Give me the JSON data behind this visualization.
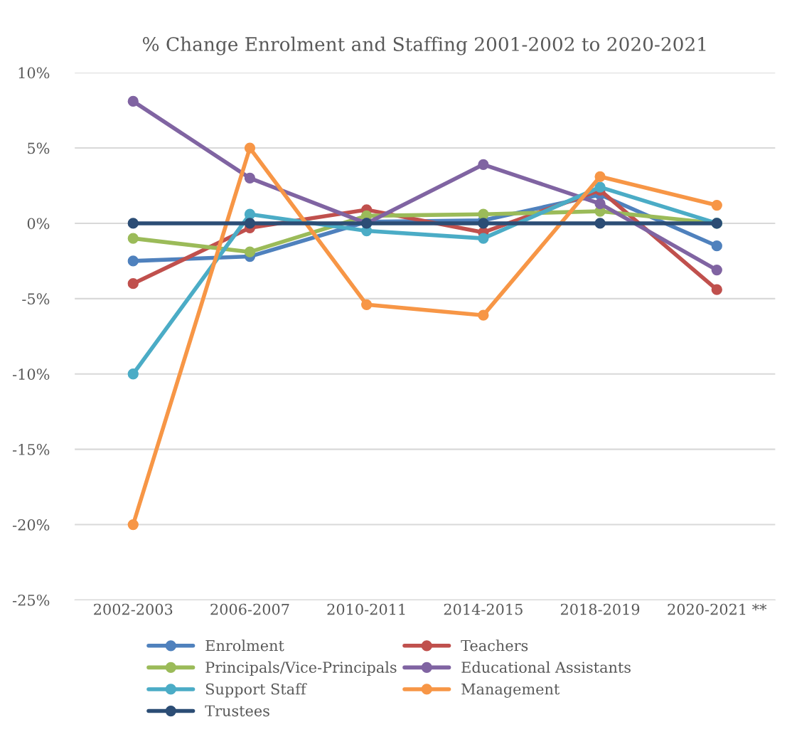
{
  "chart_data": {
    "type": "line",
    "title": "% Change Enrolment and Staffing 2001-2002 to 2020-2021",
    "categories": [
      "2002-2003",
      "2006-2007",
      "2010-2011",
      "2014-2015",
      "2018-2019",
      "2020-2021 **"
    ],
    "series": [
      {
        "name": "Enrolment",
        "color": "#4f81bd",
        "values": [
          -2.5,
          -2.2,
          0.1,
          0.2,
          1.9,
          -1.5
        ]
      },
      {
        "name": "Teachers",
        "color": "#c0504d",
        "values": [
          -4.0,
          -0.3,
          0.9,
          -0.6,
          2.2,
          -4.4
        ]
      },
      {
        "name": "Principals/Vice-Principals",
        "color": "#9bbb59",
        "values": [
          -1.0,
          -1.9,
          0.5,
          0.6,
          0.8,
          0.0
        ]
      },
      {
        "name": "Educational Assistants",
        "color": "#8064a2",
        "values": [
          8.1,
          3.0,
          0.0,
          3.9,
          1.3,
          -3.1
        ]
      },
      {
        "name": "Support Staff",
        "color": "#4bacc6",
        "values": [
          -10.0,
          0.6,
          -0.5,
          -1.0,
          2.4,
          0.0
        ]
      },
      {
        "name": "Management",
        "color": "#f79646",
        "values": [
          -20.0,
          5.0,
          -5.4,
          -6.1,
          3.1,
          1.2
        ]
      },
      {
        "name": "Trustees",
        "color": "#2c4d75",
        "values": [
          0,
          0,
          0,
          0,
          0,
          0
        ]
      }
    ],
    "ylim": [
      -25,
      10
    ],
    "yticks": [
      {
        "value": -25,
        "label": "-25%"
      },
      {
        "value": -20,
        "label": "-20%"
      },
      {
        "value": -15,
        "label": "-15%"
      },
      {
        "value": -10,
        "label": "-10%"
      },
      {
        "value": -5,
        "label": "-5%"
      },
      {
        "value": 0,
        "label": "0%"
      },
      {
        "value": 5,
        "label": "5%"
      },
      {
        "value": 10,
        "label": "10%"
      }
    ],
    "grid": "y",
    "legend": "bottom",
    "marker": "circle",
    "line_style": "solid"
  }
}
